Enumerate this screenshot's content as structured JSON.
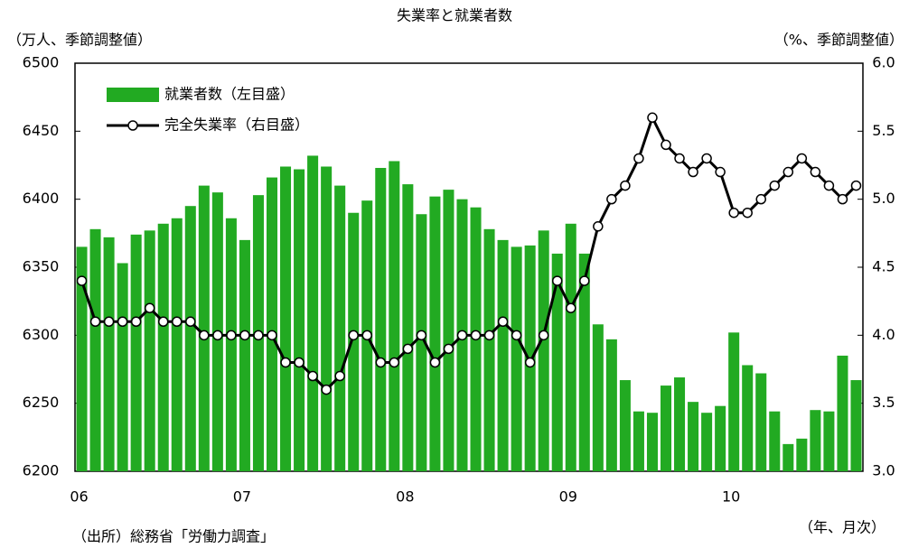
{
  "chart_data": {
    "type": "bar",
    "title": "失業率と就業者数",
    "y_label": "（万人、季節調整値）",
    "y2_label": "（%、季節調整値）",
    "x_label": "（年、月次）",
    "source": "（出所）総務省「労働力調査」",
    "categories": [
      "06",
      null,
      null,
      null,
      null,
      null,
      null,
      null,
      null,
      null,
      null,
      null,
      "07",
      null,
      null,
      null,
      null,
      null,
      null,
      null,
      null,
      null,
      null,
      null,
      "08",
      null,
      null,
      null,
      null,
      null,
      null,
      null,
      null,
      null,
      null,
      null,
      "09",
      null,
      null,
      null,
      null,
      null,
      null,
      null,
      null,
      null,
      null,
      null,
      "10",
      null,
      null,
      null,
      null,
      null,
      null,
      null,
      null,
      null
    ],
    "series": [
      {
        "name": "就業者数（左目盛）",
        "type": "bar",
        "color": "#22aa22",
        "values": [
          6365,
          6378,
          6372,
          6353,
          6374,
          6377,
          6382,
          6386,
          6395,
          6410,
          6405,
          6386,
          6370,
          6403,
          6416,
          6424,
          6422,
          6432,
          6424,
          6410,
          6390,
          6399,
          6423,
          6428,
          6411,
          6389,
          6402,
          6407,
          6400,
          6394,
          6378,
          6370,
          6365,
          6366,
          6377,
          6360,
          6382,
          6360,
          6308,
          6297,
          6267,
          6244,
          6243,
          6263,
          6269,
          6251,
          6243,
          6248,
          6302,
          6278,
          6272,
          6244,
          6220,
          6224,
          6245,
          6244,
          6285,
          6267
        ]
      },
      {
        "name": "完全失業率（右目盛）",
        "type": "line",
        "axis": "y2",
        "color": "#000000",
        "values": [
          4.4,
          4.1,
          4.1,
          4.1,
          4.1,
          4.2,
          4.1,
          4.1,
          4.1,
          4.0,
          4.0,
          4.0,
          4.0,
          4.0,
          4.0,
          3.8,
          3.8,
          3.7,
          3.6,
          3.7,
          4.0,
          4.0,
          3.8,
          3.8,
          3.9,
          4.0,
          3.8,
          3.9,
          4.0,
          4.0,
          4.0,
          4.1,
          4.0,
          3.8,
          4.0,
          4.4,
          4.2,
          4.4,
          4.8,
          5.0,
          5.1,
          5.3,
          5.6,
          5.4,
          5.3,
          5.2,
          5.3,
          5.2,
          4.9,
          4.9,
          5.0,
          5.1,
          5.2,
          5.3,
          5.2,
          5.1,
          5.0,
          5.1
        ]
      }
    ],
    "ylim": [
      6200,
      6500
    ],
    "yticks": [
      6200,
      6250,
      6300,
      6350,
      6400,
      6450,
      6500
    ],
    "y2lim": [
      3.0,
      6.0
    ],
    "y2ticks": [
      {
        "value": 3.0,
        "label": "3.0"
      },
      {
        "value": 3.5,
        "label": "3.5"
      },
      {
        "value": 4.0,
        "label": "4.0"
      },
      {
        "value": 4.5,
        "label": "4.5"
      },
      {
        "value": 5.0,
        "label": "5.0"
      },
      {
        "value": 5.5,
        "label": "5.5"
      },
      {
        "value": 6.0,
        "label": "6.0"
      }
    ],
    "legend": "upper left"
  }
}
